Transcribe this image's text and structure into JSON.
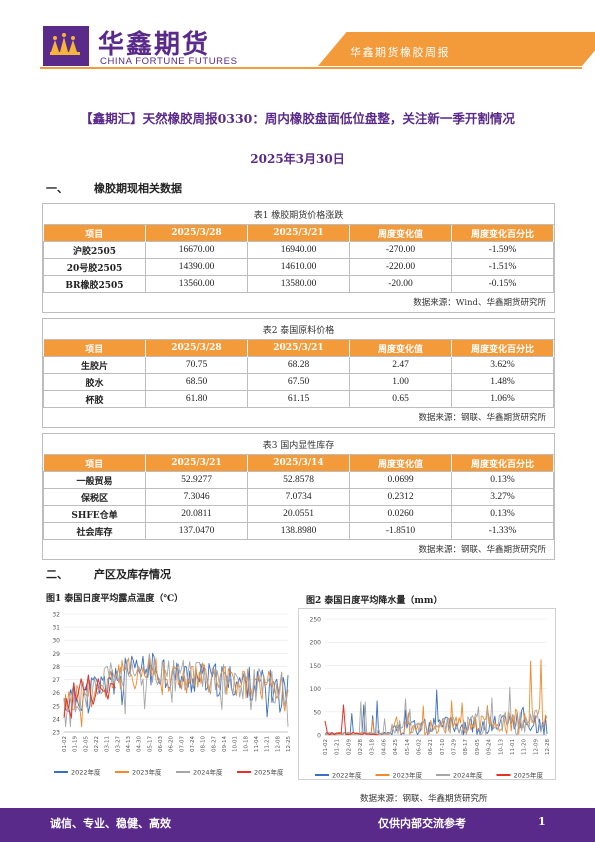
{
  "header": {
    "logo_cn": "华鑫期货",
    "logo_en": "CHINA FORTUNE FUTURES",
    "report_series": "华鑫期货橡胶周报"
  },
  "title": "【鑫期汇】天然橡胶周报0330：周内橡胶盘面低位盘整，关注新一季开割情况",
  "date": "2025年3月30日",
  "section1": {
    "num": "一、",
    "title": "橡胶期现相关数据"
  },
  "table1": {
    "caption": "表1 橡胶期货价格涨跌",
    "headers": [
      "项目",
      "2025/3/28",
      "2025/3/21",
      "周度变化值",
      "周度变化百分比"
    ],
    "rows": [
      [
        "沪胶2505",
        "16670.00",
        "16940.00",
        "-270.00",
        "-1.59%"
      ],
      [
        "20号胶2505",
        "14390.00",
        "14610.00",
        "-220.00",
        "-1.51%"
      ],
      [
        "BR橡胶2505",
        "13560.00",
        "13580.00",
        "-20.00",
        "-0.15%"
      ]
    ],
    "source": "数据来源：Wind、华鑫期货研究所"
  },
  "table2": {
    "caption": "表2 泰国原料价格",
    "headers": [
      "项目",
      "2025/3/28",
      "2025/3/21",
      "周度变化值",
      "周度变化百分比"
    ],
    "rows": [
      [
        "生胶片",
        "70.75",
        "68.28",
        "2.47",
        "3.62%"
      ],
      [
        "胶水",
        "68.50",
        "67.50",
        "1.00",
        "1.48%"
      ],
      [
        "杯胶",
        "61.80",
        "61.15",
        "0.65",
        "1.06%"
      ]
    ],
    "source": "数据来源：钢联、华鑫期货研究所"
  },
  "table3": {
    "caption": "表3 国内显性库存",
    "headers": [
      "项目",
      "2025/3/21",
      "2025/3/14",
      "周度变化值",
      "周度变化百分比"
    ],
    "rows": [
      [
        "一般贸易",
        "52.9277",
        "52.8578",
        "0.0699",
        "0.13%"
      ],
      [
        "保税区",
        "7.3046",
        "7.0734",
        "0.2312",
        "3.27%"
      ],
      [
        "SHFE仓单",
        "20.0811",
        "20.0551",
        "0.0260",
        "0.13%"
      ],
      [
        "社会库存",
        "137.0470",
        "138.8980",
        "-1.8510",
        "-1.33%"
      ]
    ],
    "source": "数据来源：钢联、华鑫期货研究所"
  },
  "section2": {
    "num": "二、",
    "title": "产区及库存情况"
  },
  "chart1": {
    "title": "图1 泰国日度平均露点温度（℃）",
    "yticks": [
      "23",
      "24",
      "25",
      "26",
      "27",
      "28",
      "29",
      "30",
      "31",
      "32"
    ],
    "xticks": [
      "01-02",
      "01-19",
      "02-05",
      "02-22",
      "03-11",
      "03-27",
      "04-13",
      "04-30",
      "05-17",
      "06-03",
      "06-20",
      "07-07",
      "07-24",
      "08-10",
      "08-27",
      "09-14",
      "10-01",
      "10-18",
      "11-04",
      "11-21",
      "12-08",
      "12-25"
    ],
    "legend": [
      "2022年度",
      "2023年度",
      "2024年度",
      "2025年度"
    ],
    "colors": [
      "#3a6fc4",
      "#f08a2c",
      "#a6a6a6",
      "#e8302a"
    ]
  },
  "chart2": {
    "title": "图2 泰国日度平均降水量（mm）",
    "yticks": [
      "0",
      "50",
      "100",
      "150",
      "200",
      "250"
    ],
    "xticks": [
      "01-02",
      "01-21",
      "02-09",
      "02-28",
      "03-18",
      "04-06",
      "04-25",
      "05-14",
      "06-02",
      "06-21",
      "07-10",
      "07-29",
      "08-17",
      "09-05",
      "09-24",
      "10-13",
      "11-01",
      "11-20",
      "12-09",
      "12-28"
    ],
    "legend": [
      "2022年度",
      "2023年度",
      "2024年度",
      "2025年度"
    ],
    "colors": [
      "#3a6fc4",
      "#f08a2c",
      "#a6a6a6",
      "#e8302a"
    ]
  },
  "chart_source": "数据来源：钢联、华鑫期货研究所",
  "footer": {
    "left": "诚信、专业、稳健、高效",
    "right": "仅供内部交流参考",
    "page": "1"
  }
}
